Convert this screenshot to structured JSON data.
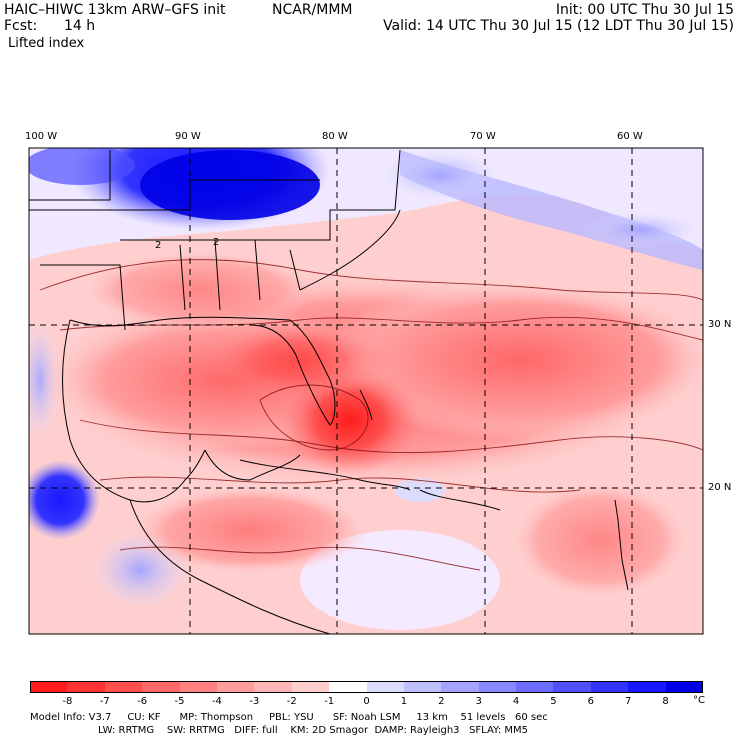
{
  "header": {
    "model_title": "HAIC–HIWC 13km ARW–GFS init",
    "org": "NCAR/MMM",
    "init": "Init: 00 UTC Thu 30 Jul 15",
    "fcst_label": "Fcst:",
    "fcst_value": "14 h",
    "valid": "Valid: 14 UTC Thu 30 Jul 15 (12 LDT Thu 30 Jul 15)",
    "field": "Lifted index"
  },
  "map": {
    "lon_labels": [
      "100 W",
      "90 W",
      "80 W",
      "70 W",
      "60 W"
    ],
    "lat_labels": [
      "30 N",
      "20 N"
    ],
    "contour_label": "2"
  },
  "legend": {
    "ticks": [
      "-8",
      "-7",
      "-6",
      "-5",
      "-4",
      "-3",
      "-2",
      "-1",
      "0",
      "1",
      "2",
      "3",
      "4",
      "5",
      "6",
      "7",
      "8"
    ],
    "unit": "°C",
    "colors": [
      "#ff1c1c",
      "#ff3535",
      "#ff4f4f",
      "#ff6868",
      "#ff8282",
      "#ff9c9c",
      "#ffb5b5",
      "#ffcfcf",
      "#ffffff",
      "#dcdcff",
      "#c0c0ff",
      "#a4a4ff",
      "#8888ff",
      "#6c6cff",
      "#5050ff",
      "#3434ff",
      "#1818ff",
      "#0000e6"
    ]
  },
  "model_info": {
    "line1": "Model Info: V3.7     CU: KF      MP: Thompson     PBL: YSU      SF: Noah LSM     13 km    51 levels   60 sec",
    "line2": "LW: RRTMG    SW: RRTMG   DIFF: full    KM: 2D Smagor  DAMP: Rayleigh3   SFLAY: MM5"
  }
}
